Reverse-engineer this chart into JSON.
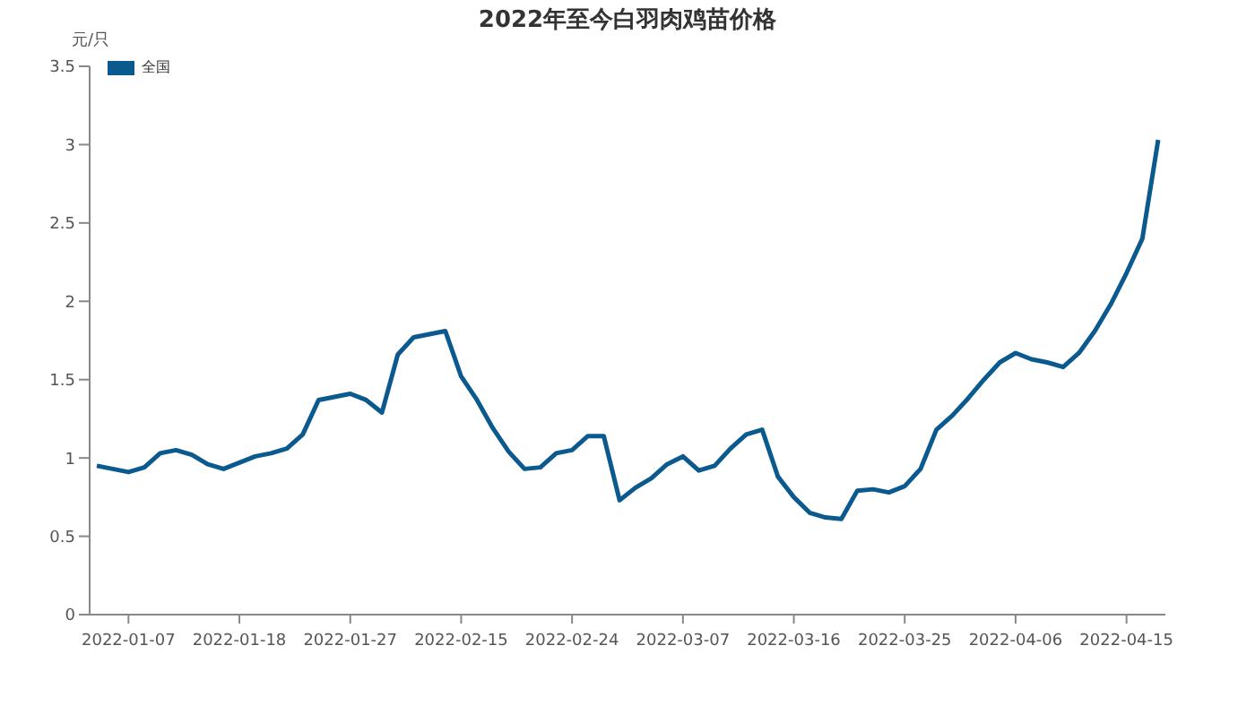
{
  "chart_data": {
    "type": "line",
    "title": "2022年至今白羽肉鸡苗价格",
    "ylabel": "元/只",
    "categories": [
      null,
      null,
      "2022-01-07",
      null,
      null,
      null,
      null,
      null,
      null,
      "2022-01-18",
      null,
      null,
      null,
      null,
      null,
      null,
      "2022-01-27",
      null,
      null,
      null,
      null,
      null,
      null,
      "2022-02-15",
      null,
      null,
      null,
      null,
      null,
      null,
      "2022-02-24",
      null,
      null,
      null,
      null,
      null,
      null,
      "2022-03-07",
      null,
      null,
      null,
      null,
      null,
      null,
      "2022-03-16",
      null,
      null,
      null,
      null,
      null,
      null,
      "2022-03-25",
      null,
      null,
      null,
      null,
      null,
      null,
      "2022-04-06",
      null,
      null,
      null,
      null,
      null,
      null,
      "2022-04-15",
      null,
      null
    ],
    "series": [
      {
        "name": "全国",
        "color": "#0b5a8f",
        "values": [
          0.95,
          0.93,
          0.91,
          0.94,
          1.03,
          1.05,
          1.02,
          0.96,
          0.93,
          0.97,
          1.01,
          1.03,
          1.06,
          1.15,
          1.37,
          1.39,
          1.41,
          1.37,
          1.29,
          1.66,
          1.77,
          1.79,
          1.81,
          1.52,
          1.37,
          1.19,
          1.04,
          0.93,
          0.94,
          1.03,
          1.05,
          1.14,
          1.14,
          0.73,
          0.81,
          0.87,
          0.96,
          1.01,
          0.92,
          0.95,
          1.06,
          1.15,
          1.18,
          0.88,
          0.75,
          0.65,
          0.62,
          0.61,
          0.79,
          0.8,
          0.78,
          0.82,
          0.93,
          1.18,
          1.27,
          1.38,
          1.5,
          1.61,
          1.67,
          1.63,
          1.61,
          1.58,
          1.67,
          1.81,
          1.98,
          2.18,
          2.4,
          3.03
        ]
      }
    ],
    "ylim": [
      0,
      3.5
    ],
    "yticks": [
      0,
      0.5,
      1,
      1.5,
      2,
      2.5,
      3,
      3.5
    ],
    "grid": false,
    "legend": "top left",
    "marker": "none",
    "line_style": "solid"
  }
}
